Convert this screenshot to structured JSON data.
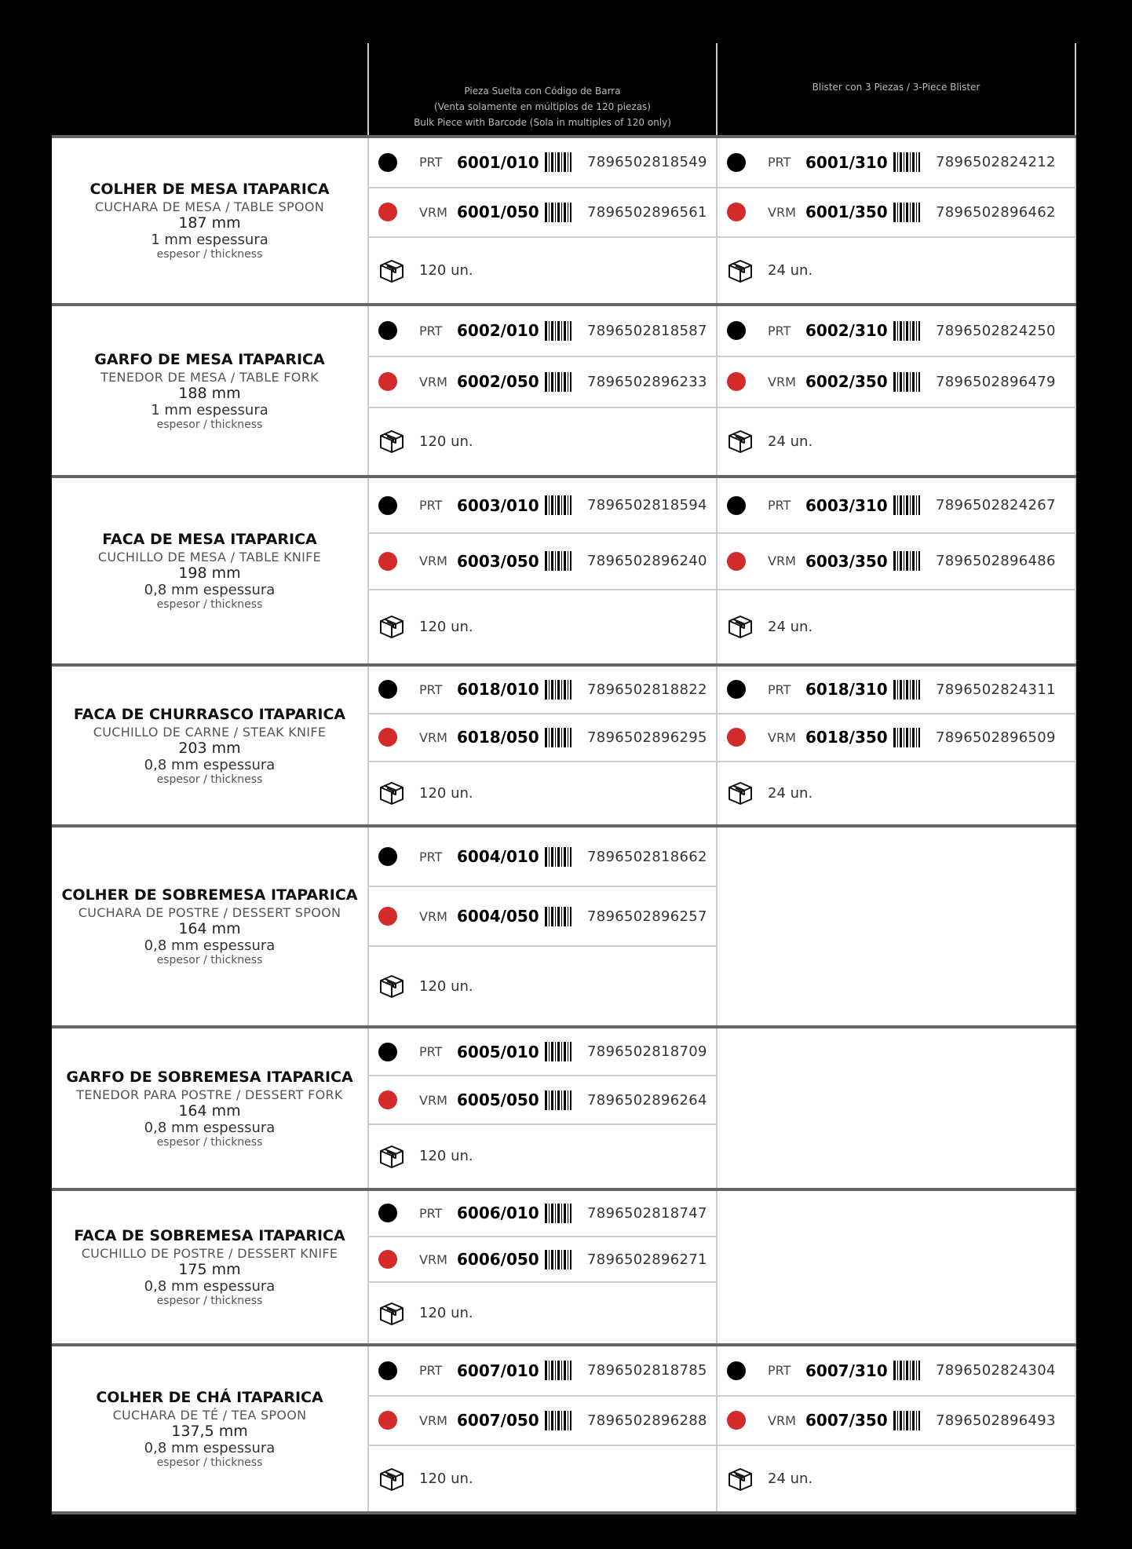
{
  "header": {
    "bulk_line1": "Pieza Suelta con Código de Barra",
    "bulk_line2": "(Venta solamente en múltiplos de 120  piezas)",
    "bulk_line3": "Bulk Piece with Barcode (Sola in multiples of 120 only)",
    "blister": "Blister con 3 Piezas / 3-Piece Blister"
  },
  "colors": {
    "black_finish": "#000000",
    "red_finish": "#d32a2a"
  },
  "icons": {
    "barcode": "barcode-icon",
    "box": "box-icon",
    "finish": "color-dot-icon"
  },
  "rows": [
    {
      "title": "COLHER DE MESA ITAPARICA",
      "subtitle": "CUCHARA DE MESA / TABLE SPOON",
      "length": "187 mm",
      "thickness": "1 mm espessura",
      "thickness_label": "espesor / thickness",
      "bulk": {
        "prt": {
          "finish": "PRT",
          "code": "6001/010",
          "ean": "7896502818549"
        },
        "vrm": {
          "finish": "VRM",
          "code": "6001/050",
          "ean": "7896502896561"
        },
        "qty": "120 un."
      },
      "blister": {
        "prt": {
          "finish": "PRT",
          "code": "6001/310",
          "ean": "7896502824212"
        },
        "vrm": {
          "finish": "VRM",
          "code": "6001/350",
          "ean": "7896502896462"
        },
        "qty": "24 un."
      }
    },
    {
      "title": "GARFO DE MESA ITAPARICA",
      "subtitle": "TENEDOR DE MESA / TABLE FORK",
      "length": "188 mm",
      "thickness": "1 mm espessura",
      "thickness_label": "espesor / thickness",
      "bulk": {
        "prt": {
          "finish": "PRT",
          "code": "6002/010",
          "ean": "7896502818587"
        },
        "vrm": {
          "finish": "VRM",
          "code": "6002/050",
          "ean": "7896502896233"
        },
        "qty": "120 un."
      },
      "blister": {
        "prt": {
          "finish": "PRT",
          "code": "6002/310",
          "ean": "7896502824250"
        },
        "vrm": {
          "finish": "VRM",
          "code": "6002/350",
          "ean": "7896502896479"
        },
        "qty": "24 un."
      }
    },
    {
      "title": "FACA DE MESA ITAPARICA",
      "subtitle": "CUCHILLO DE MESA / TABLE KNIFE",
      "length": "198 mm",
      "thickness": "0,8 mm espessura",
      "thickness_label": "espesor / thickness",
      "bulk": {
        "prt": {
          "finish": "PRT",
          "code": "6003/010",
          "ean": "7896502818594"
        },
        "vrm": {
          "finish": "VRM",
          "code": "6003/050",
          "ean": "7896502896240"
        },
        "qty": "120 un."
      },
      "blister": {
        "prt": {
          "finish": "PRT",
          "code": "6003/310",
          "ean": "7896502824267"
        },
        "vrm": {
          "finish": "VRM",
          "code": "6003/350",
          "ean": "7896502896486"
        },
        "qty": "24 un."
      }
    },
    {
      "title": "FACA DE CHURRASCO ITAPARICA",
      "subtitle": "CUCHILLO DE CARNE / STEAK KNIFE",
      "length": "203 mm",
      "thickness": "0,8 mm espessura",
      "thickness_label": "espesor / thickness",
      "bulk": {
        "prt": {
          "finish": "PRT",
          "code": "6018/010",
          "ean": "7896502818822"
        },
        "vrm": {
          "finish": "VRM",
          "code": "6018/050",
          "ean": "7896502896295"
        },
        "qty": "120 un."
      },
      "blister": {
        "prt": {
          "finish": "PRT",
          "code": "6018/310",
          "ean": "7896502824311"
        },
        "vrm": {
          "finish": "VRM",
          "code": "6018/350",
          "ean": "7896502896509"
        },
        "qty": "24 un."
      }
    },
    {
      "title": "COLHER DE SOBREMESA ITAPARICA",
      "subtitle": "CUCHARA DE POSTRE / DESSERT SPOON",
      "length": "164 mm",
      "thickness": "0,8 mm espessura",
      "thickness_label": "espesor / thickness",
      "bulk": {
        "prt": {
          "finish": "PRT",
          "code": "6004/010",
          "ean": "7896502818662"
        },
        "vrm": {
          "finish": "VRM",
          "code": "6004/050",
          "ean": "7896502896257"
        },
        "qty": "120 un."
      }
    },
    {
      "title": "GARFO DE SOBREMESA ITAPARICA",
      "subtitle": "TENEDOR PARA POSTRE / DESSERT FORK",
      "length": "164 mm",
      "thickness": "0,8 mm espessura",
      "thickness_label": "espesor / thickness",
      "bulk": {
        "prt": {
          "finish": "PRT",
          "code": "6005/010",
          "ean": "7896502818709"
        },
        "vrm": {
          "finish": "VRM",
          "code": "6005/050",
          "ean": "7896502896264"
        },
        "qty": "120 un."
      }
    },
    {
      "title": "FACA DE SOBREMESA ITAPARICA",
      "subtitle": "CUCHILLO DE POSTRE / DESSERT KNIFE",
      "length": "175 mm",
      "thickness": "0,8 mm espessura",
      "thickness_label": "espesor / thickness",
      "bulk": {
        "prt": {
          "finish": "PRT",
          "code": "6006/010",
          "ean": "7896502818747"
        },
        "vrm": {
          "finish": "VRM",
          "code": "6006/050",
          "ean": "7896502896271"
        },
        "qty": "120 un."
      }
    },
    {
      "title": "COLHER DE CHÁ ITAPARICA",
      "subtitle": "CUCHARA DE TÉ / TEA SPOON",
      "length": "137,5 mm",
      "thickness": "0,8 mm espessura",
      "thickness_label": "espesor / thickness",
      "bulk": {
        "prt": {
          "finish": "PRT",
          "code": "6007/010",
          "ean": "7896502818785"
        },
        "vrm": {
          "finish": "VRM",
          "code": "6007/050",
          "ean": "7896502896288"
        },
        "qty": "120 un."
      },
      "blister": {
        "prt": {
          "finish": "PRT",
          "code": "6007/310",
          "ean": "7896502824304"
        },
        "vrm": {
          "finish": "VRM",
          "code": "6007/350",
          "ean": "7896502896493"
        },
        "qty": "24 un."
      }
    }
  ]
}
